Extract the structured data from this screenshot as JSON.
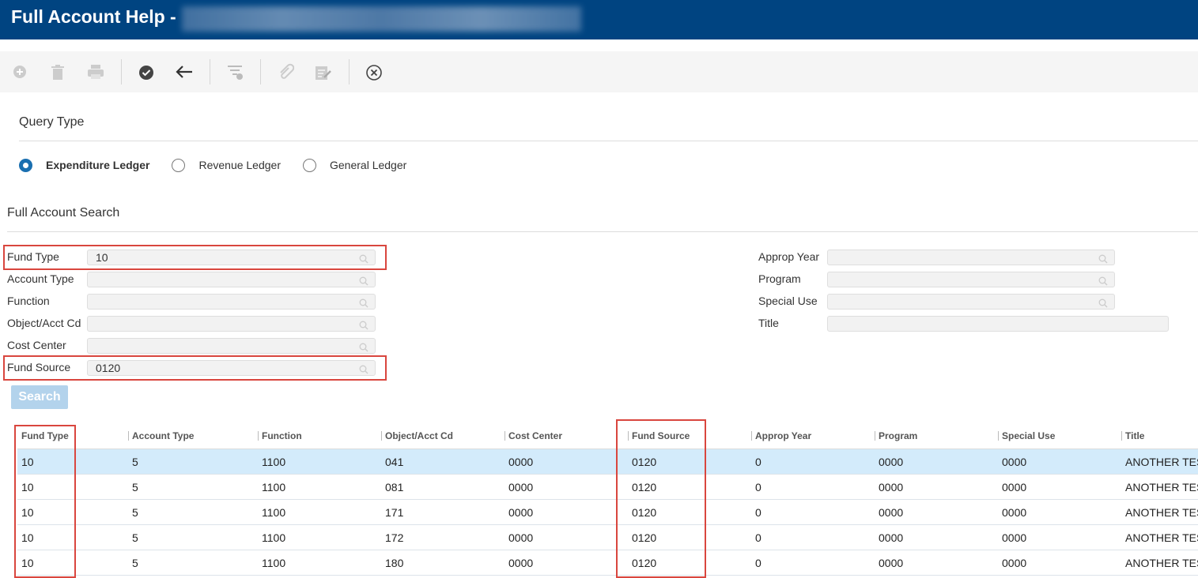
{
  "header": {
    "title": "Full Account Help -"
  },
  "query_type": {
    "title": "Query Type",
    "options": [
      {
        "label": "Expenditure Ledger",
        "selected": true
      },
      {
        "label": "Revenue Ledger",
        "selected": false
      },
      {
        "label": "General Ledger",
        "selected": false
      }
    ]
  },
  "search": {
    "title": "Full Account Search",
    "left_fields": [
      {
        "label": "Fund Type",
        "value": "10",
        "lookup": true
      },
      {
        "label": "Account Type",
        "lookup": true
      },
      {
        "label": "Function",
        "lookup": true
      },
      {
        "label": "Object/Acct Cd",
        "lookup": true
      },
      {
        "label": "Cost Center",
        "lookup": true
      },
      {
        "label": "Fund Source",
        "value": "0120",
        "lookup": true
      }
    ],
    "right_fields": [
      {
        "label": "Approp Year",
        "lookup": true
      },
      {
        "label": "Program",
        "lookup": true
      },
      {
        "label": "Special Use",
        "lookup": true
      },
      {
        "label": "Title",
        "lookup": false
      }
    ],
    "button": "Search"
  },
  "table": {
    "columns": [
      "Fund Type",
      "Account Type",
      "Function",
      "Object/Acct Cd",
      "Cost Center",
      "Fund Source",
      "Approp Year",
      "Program",
      "Special Use",
      "Title"
    ],
    "rows": [
      {
        "selected": true,
        "cells": [
          "10",
          "5",
          "1100",
          "041",
          "0000",
          "0120",
          "0",
          "0000",
          "0000",
          "ANOTHER TES"
        ]
      },
      {
        "selected": false,
        "cells": [
          "10",
          "5",
          "1100",
          "081",
          "0000",
          "0120",
          "0",
          "0000",
          "0000",
          "ANOTHER TES"
        ]
      },
      {
        "selected": false,
        "cells": [
          "10",
          "5",
          "1100",
          "171",
          "0000",
          "0120",
          "0",
          "0000",
          "0000",
          "ANOTHER TES"
        ]
      },
      {
        "selected": false,
        "cells": [
          "10",
          "5",
          "1100",
          "172",
          "0000",
          "0120",
          "0",
          "0000",
          "0000",
          "ANOTHER TES"
        ]
      },
      {
        "selected": false,
        "cells": [
          "10",
          "5",
          "1100",
          "180",
          "0000",
          "0120",
          "0",
          "0000",
          "0000",
          "ANOTHER TES"
        ]
      }
    ]
  }
}
